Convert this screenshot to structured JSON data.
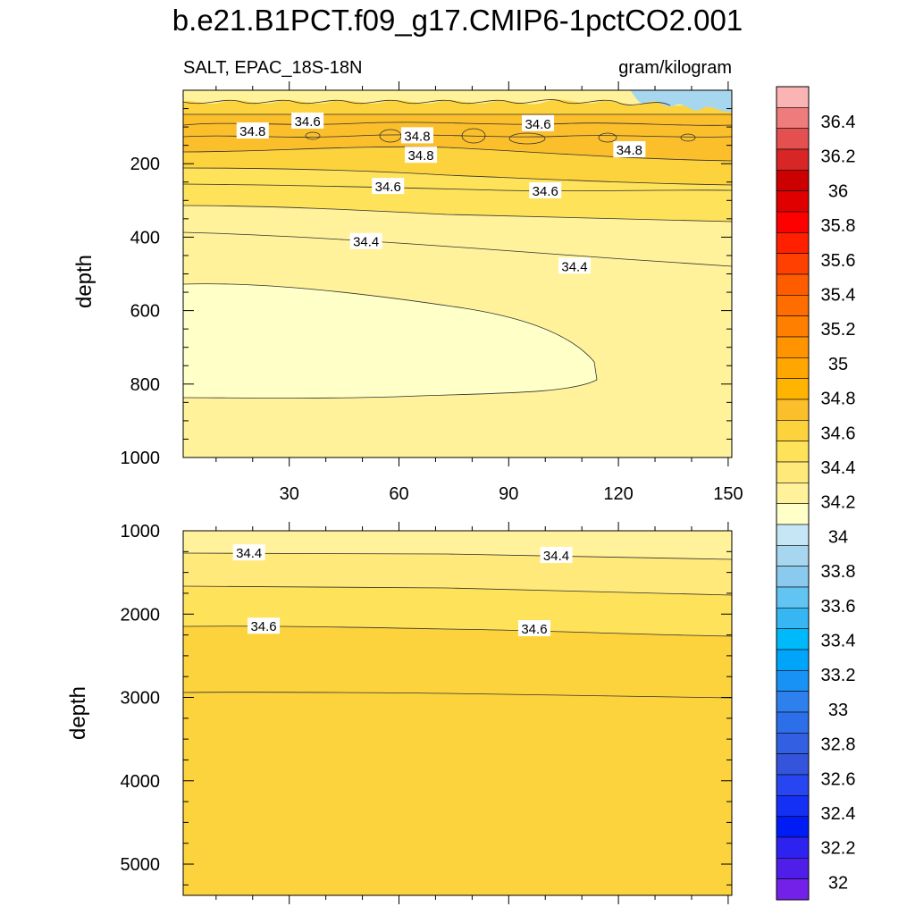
{
  "title": "b.e21.B1PCT.f09_g17.CMIP6-1pctCO2.001",
  "subtitle_left": "SALT, EPAC_18S-18N",
  "subtitle_right": "gram/kilogram",
  "chart_data": [
    {
      "type": "heatmap",
      "panel": "upper",
      "ylabel": "depth",
      "xlabel": "",
      "x_ticks": [
        30,
        60,
        90,
        120,
        150
      ],
      "y_ticks": [
        200,
        400,
        600,
        800,
        1000
      ],
      "xlim": [
        1,
        151
      ],
      "ylim": [
        1000,
        0
      ],
      "contour_labels": [
        {
          "text": "34.8",
          "x": 20,
          "y": 112
        },
        {
          "text": "34.6",
          "x": 35,
          "y": 85
        },
        {
          "text": "34.8",
          "x": 65,
          "y": 125
        },
        {
          "text": "34.6",
          "x": 98,
          "y": 92
        },
        {
          "text": "34.8",
          "x": 66,
          "y": 178
        },
        {
          "text": "34.8",
          "x": 123,
          "y": 163
        },
        {
          "text": "34.6",
          "x": 57,
          "y": 263
        },
        {
          "text": "34.6",
          "x": 100,
          "y": 275
        },
        {
          "text": "34.4",
          "x": 51,
          "y": 413
        },
        {
          "text": "34.4",
          "x": 108,
          "y": 480
        }
      ],
      "fill_colors": {
        "top_fresh": "#a7d6ef",
        "band_349": "#fcbf2c",
        "band_348": "#fdd33d",
        "band_346": "#fee25a",
        "band_344": "#fff29a",
        "band_342": "#ffffc8"
      }
    },
    {
      "type": "heatmap",
      "panel": "lower",
      "ylabel": "depth",
      "xlabel": "",
      "y_ticks": [
        1000,
        2000,
        3000,
        4000,
        5000
      ],
      "xlim": [
        1,
        151
      ],
      "ylim": [
        5375,
        1000
      ],
      "contour_labels": [
        {
          "text": "34.4",
          "x": 19,
          "y": 1270
        },
        {
          "text": "34.4",
          "x": 103,
          "y": 1300
        },
        {
          "text": "34.6",
          "x": 23,
          "y": 2150
        },
        {
          "text": "34.6",
          "x": 97,
          "y": 2180
        }
      ]
    }
  ],
  "colorbar": {
    "labels": [
      "36.4",
      "36.2",
      "36",
      "35.8",
      "35.6",
      "35.4",
      "35.2",
      "35",
      "34.8",
      "34.6",
      "34.4",
      "34.2",
      "34",
      "33.8",
      "33.6",
      "33.4",
      "33.2",
      "33",
      "32.8",
      "32.6",
      "32.4",
      "32.2",
      "32"
    ],
    "colors": [
      "#fbb4b4",
      "#ef7c7c",
      "#e45050",
      "#d82525",
      "#cc0000",
      "#e00000",
      "#ff0000",
      "#ff2000",
      "#ff4000",
      "#ff5c00",
      "#ff6c00",
      "#ff8000",
      "#ff9400",
      "#ffa600",
      "#ffb400",
      "#fcbf2c",
      "#fdd33d",
      "#fee25a",
      "#ffe97a",
      "#fff29a",
      "#ffffc8",
      "#c6e6f5",
      "#a7d6ef",
      "#8bcaef",
      "#62c4f2",
      "#36b7f4",
      "#00b9fa",
      "#00a5fa",
      "#1892f5",
      "#2f80ef",
      "#2d6ee9",
      "#3360e2",
      "#3554dc",
      "#2746f2",
      "#1530f5",
      "#001cf5",
      "#2e22f0",
      "#4f1ee9",
      "#7321e8"
    ]
  }
}
